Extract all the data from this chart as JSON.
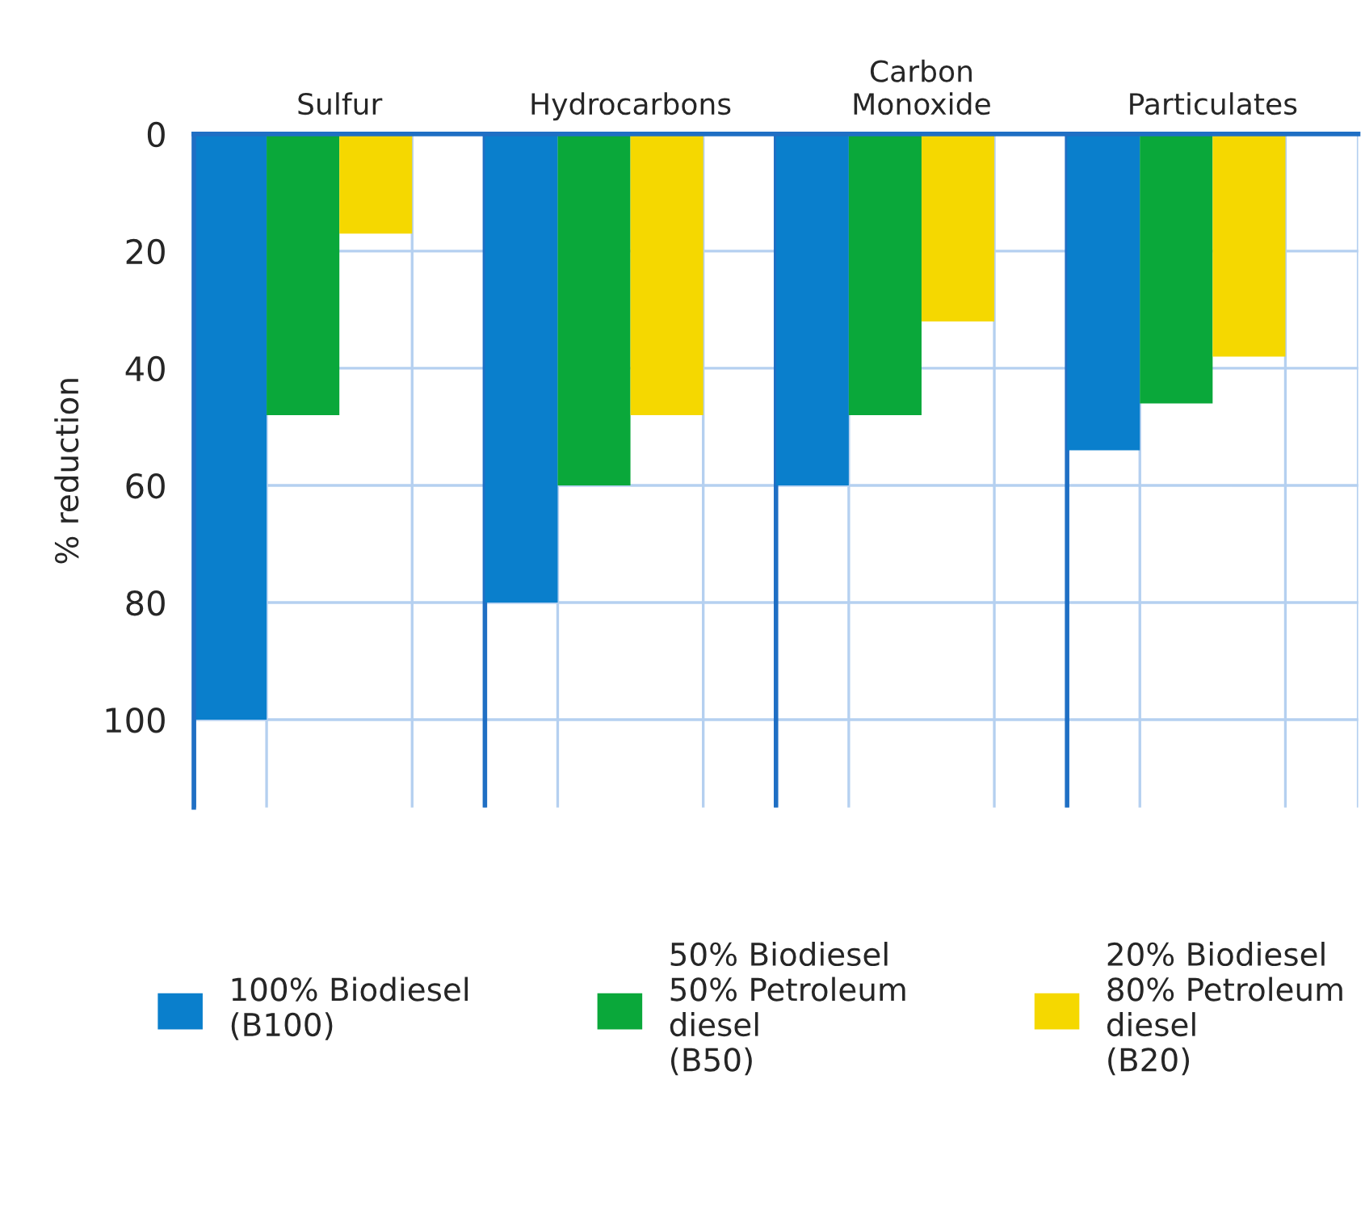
{
  "chart_data": {
    "type": "bar",
    "ylabel": "% reduction",
    "categories": [
      "Sulfur",
      "Hydrocarbons",
      "Carbon\nMonoxide",
      "Particulates"
    ],
    "series": [
      {
        "name": "100% Biodiesel\n(B100)",
        "color": "#0a7fcc",
        "values": [
          100,
          80,
          60,
          54
        ]
      },
      {
        "name": "50% Biodiesel\n50% Petroleum\ndiesel\n(B50)",
        "color": "#0aa83a",
        "values": [
          48,
          60,
          48,
          46
        ]
      },
      {
        "name": "20% Biodiesel\n80% Petroleum\ndiesel\n(B20)",
        "color": "#f5d800",
        "values": [
          17,
          48,
          32,
          38
        ]
      }
    ],
    "ylim": [
      115,
      0
    ],
    "yticks": [
      0,
      20,
      40,
      60,
      80,
      100
    ],
    "grid": true,
    "legend": "bottom"
  }
}
